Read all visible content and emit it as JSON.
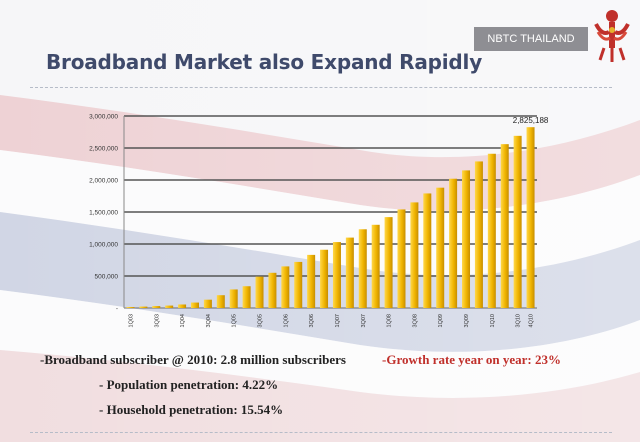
{
  "header": {
    "badge_label": "NBTC THAILAND",
    "title": "Broadband Market also Expand Rapidly"
  },
  "colors": {
    "bar": "#f0b400",
    "bar_dark": "#c78e00",
    "title": "#3f4a6b",
    "accent_red": "#c0302b"
  },
  "chart_data": {
    "type": "bar",
    "title": "",
    "xlabel": "",
    "ylabel": "",
    "ylim": [
      0,
      3000000
    ],
    "yticks": [
      "-",
      "500,000",
      "1,000,000",
      "1,500,000",
      "2,000,000",
      "2,500,000",
      "3,000,000"
    ],
    "grid": true,
    "categories": [
      "1Q03",
      "2Q03",
      "3Q03",
      "4Q03",
      "1Q04",
      "2Q04",
      "3Q04",
      "4Q04",
      "1Q05",
      "2Q05",
      "3Q05",
      "4Q05",
      "1Q06",
      "2Q06",
      "3Q06",
      "4Q06",
      "1Q07",
      "2Q07",
      "3Q07",
      "4Q07",
      "1Q08",
      "2Q08",
      "3Q08",
      "4Q08",
      "1Q09",
      "2Q09",
      "3Q09",
      "4Q09",
      "1Q10",
      "2Q10",
      "3Q10",
      "4Q10"
    ],
    "tick_labels": [
      "1Q03",
      "",
      "3Q03",
      "",
      "1Q04",
      "",
      "3Q04",
      "",
      "1Q05",
      "",
      "3Q05",
      "",
      "1Q06",
      "",
      "3Q06",
      "",
      "1Q07",
      "",
      "3Q07",
      "",
      "1Q08",
      "",
      "3Q08",
      "",
      "1Q09",
      "",
      "3Q09",
      "",
      "1Q10",
      "",
      "3Q10",
      "4Q10"
    ],
    "values": [
      15000,
      22000,
      30000,
      38000,
      55000,
      85000,
      130000,
      200000,
      290000,
      340000,
      490000,
      550000,
      650000,
      720000,
      830000,
      910000,
      1030000,
      1100000,
      1230000,
      1300000,
      1420000,
      1540000,
      1650000,
      1790000,
      1880000,
      2020000,
      2150000,
      2290000,
      2410000,
      2560000,
      2690000,
      2825188
    ],
    "annotation": {
      "index": 31,
      "text": "2,825,188"
    }
  },
  "bullets": {
    "line1": "-Broadband subscriber @ 2010: 2.8 million subscribers",
    "growth": "-Growth rate year on year: 23%",
    "line2": "- Population penetration: 4.22%",
    "line3": "- Household penetration: 15.54%"
  }
}
